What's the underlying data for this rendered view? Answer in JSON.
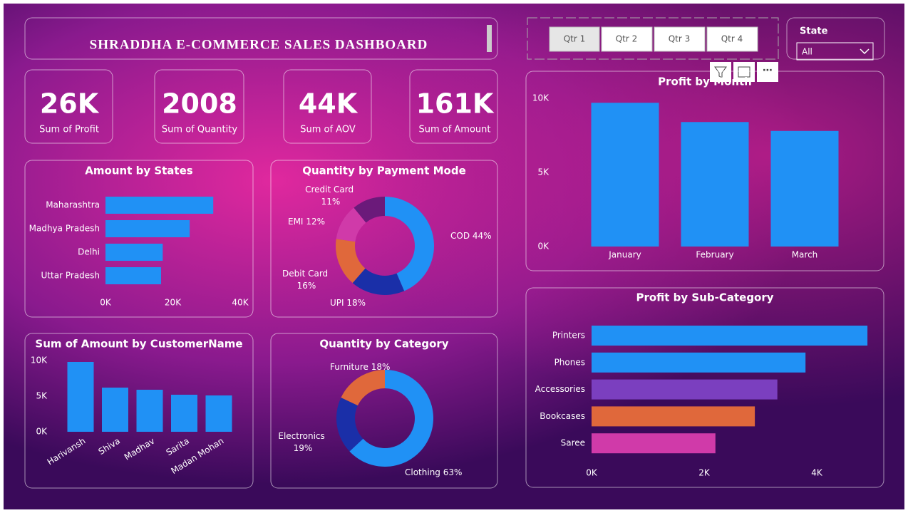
{
  "header": {
    "title": "SHRADDHA E-COMMERCE SALES DASHBOARD"
  },
  "slicer": {
    "options": [
      "Qtr 1",
      "Qtr 2",
      "Qtr 3",
      "Qtr 4"
    ]
  },
  "state_filter": {
    "label": "State",
    "selected": "All"
  },
  "kpis": [
    {
      "value": "26K",
      "label": "Sum of Profit"
    },
    {
      "value": "2008",
      "label": "Sum of Quantity"
    },
    {
      "value": "44K",
      "label": "Sum of AOV"
    },
    {
      "value": "161K",
      "label": "Sum of Amount"
    }
  ],
  "chart_data": [
    {
      "type": "bar",
      "orientation": "horizontal",
      "title": "Amount by States",
      "categories": [
        "Maharashtra",
        "Madhya Pradesh",
        "Delhi",
        "Uttar Pradesh"
      ],
      "values": [
        32000,
        25000,
        17000,
        16500
      ],
      "color": "#2091f5",
      "xlim": [
        0,
        40000
      ],
      "xticks": [
        {
          "value": 0,
          "label": "0K"
        },
        {
          "value": 20000,
          "label": "20K"
        },
        {
          "value": 40000,
          "label": "40K"
        }
      ]
    },
    {
      "type": "pie",
      "donut": true,
      "title": "Quantity by Payment Mode",
      "categories": [
        "COD",
        "UPI",
        "Debit Card",
        "EMI",
        "Credit Card"
      ],
      "values": [
        44,
        18,
        16,
        12,
        11
      ],
      "value_labels": [
        "44%",
        "18%",
        "16%",
        "12%",
        "11%"
      ],
      "colors": [
        "#2091f5",
        "#1a2fa8",
        "#e0683b",
        "#d03aa9",
        "#6b1a7a"
      ]
    },
    {
      "type": "bar",
      "orientation": "vertical",
      "title": "Sum of Amount by CustomerName",
      "categories": [
        "Harivansh",
        "Shiva",
        "Madhav",
        "Sarita",
        "Madan Mohan"
      ],
      "values": [
        9800,
        6200,
        5900,
        5200,
        5100
      ],
      "color": "#2091f5",
      "ylim": [
        0,
        10000
      ],
      "yticks": [
        {
          "value": 0,
          "label": "0K"
        },
        {
          "value": 5000,
          "label": "5K"
        },
        {
          "value": 10000,
          "label": "10K"
        }
      ]
    },
    {
      "type": "pie",
      "donut": true,
      "title": "Quantity by Category",
      "categories": [
        "Clothing",
        "Electronics",
        "Furniture"
      ],
      "values": [
        63,
        19,
        18
      ],
      "value_labels": [
        "63%",
        "19%",
        "18%"
      ],
      "colors": [
        "#2091f5",
        "#1a2fa8",
        "#e0683b"
      ]
    },
    {
      "type": "bar",
      "orientation": "vertical",
      "title": "Profit by Month",
      "categories": [
        "January",
        "February",
        "March"
      ],
      "values": [
        9700,
        8400,
        7800
      ],
      "color": "#2091f5",
      "ylim": [
        0,
        10000
      ],
      "yticks": [
        {
          "value": 0,
          "label": "0K"
        },
        {
          "value": 5000,
          "label": "5K"
        },
        {
          "value": 10000,
          "label": "10K"
        }
      ]
    },
    {
      "type": "bar",
      "orientation": "horizontal",
      "title": "Profit by Sub-Category",
      "categories": [
        "Printers",
        "Phones",
        "Accessories",
        "Bookcases",
        "Saree"
      ],
      "values": [
        4900,
        3800,
        3300,
        2900,
        2200
      ],
      "colors": [
        "#2091f5",
        "#2091f5",
        "#7b3fbf",
        "#e0683b",
        "#d03aa9"
      ],
      "xlim": [
        0,
        5000
      ],
      "xticks": [
        {
          "value": 0,
          "label": "0K"
        },
        {
          "value": 2000,
          "label": "2K"
        },
        {
          "value": 4000,
          "label": "4K"
        }
      ]
    }
  ]
}
